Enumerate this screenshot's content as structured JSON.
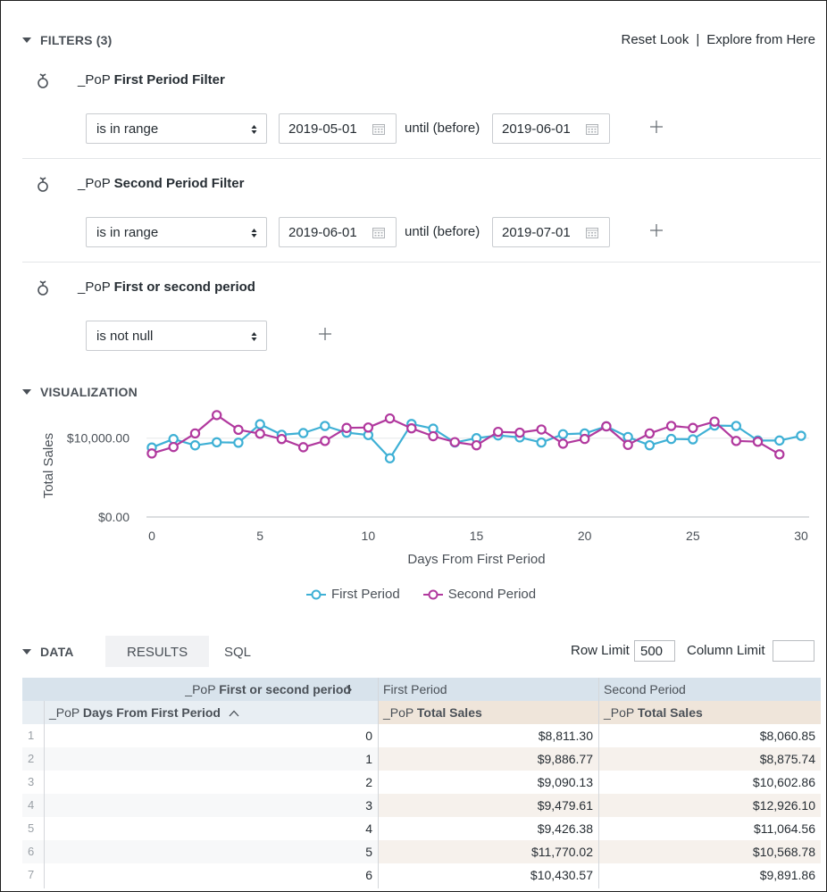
{
  "filters": {
    "heading": "FILTERS (3)",
    "reset_look": "Reset Look",
    "separator": "|",
    "explore": "Explore from Here",
    "items": [
      {
        "prefix": "_PoP ",
        "name": "First Period Filter",
        "operator": "is in range",
        "from": "2019-05-01",
        "until_label": "until (before)",
        "to": "2019-06-01"
      },
      {
        "prefix": "_PoP ",
        "name": "Second Period Filter",
        "operator": "is in range",
        "from": "2019-06-01",
        "until_label": "until (before)",
        "to": "2019-07-01"
      },
      {
        "prefix": "_PoP ",
        "name": "First or second period",
        "operator": "is not null"
      }
    ]
  },
  "visualization": {
    "heading": "VISUALIZATION"
  },
  "chart_data": {
    "type": "line",
    "title": "",
    "xlabel": "Days From First Period",
    "ylabel": "Total Sales",
    "xlim": [
      0,
      30
    ],
    "ylim": [
      0,
      14500
    ],
    "x_ticks": [
      "0",
      "5",
      "10",
      "15",
      "20",
      "25",
      "30"
    ],
    "y_ticks": [
      "$0.00",
      "$10,000.00"
    ],
    "series": [
      {
        "name": "First Period",
        "color": "#3eb0d5",
        "x": [
          0,
          1,
          2,
          3,
          4,
          5,
          6,
          7,
          8,
          9,
          10,
          11,
          12,
          13,
          14,
          15,
          16,
          17,
          18,
          19,
          20,
          21,
          22,
          23,
          24,
          25,
          26,
          27,
          28,
          29,
          30
        ],
        "values": [
          8811.3,
          9886.77,
          9090.13,
          9479.61,
          9426.38,
          11770.02,
          10430.57,
          10650,
          11550,
          10700,
          10400,
          7450,
          11800,
          11200,
          9450,
          10000,
          10350,
          10100,
          9450,
          10500,
          10600,
          11500,
          10150,
          9100,
          9900,
          9850,
          11600,
          11550,
          9700,
          9700,
          10300
        ]
      },
      {
        "name": "Second Period",
        "color": "#b1399e",
        "x": [
          0,
          1,
          2,
          3,
          4,
          5,
          6,
          7,
          8,
          9,
          10,
          11,
          12,
          13,
          14,
          15,
          16,
          17,
          18,
          19,
          20,
          21,
          22,
          23,
          24,
          25,
          26,
          27,
          28,
          29
        ],
        "values": [
          8060.85,
          8875.74,
          10602.86,
          12926.1,
          11064.56,
          10568.78,
          9891.86,
          8850,
          9650,
          11300,
          11350,
          12500,
          11250,
          10250,
          9500,
          9100,
          10800,
          10700,
          11100,
          9300,
          9900,
          11500,
          9150,
          10600,
          11550,
          11300,
          12100,
          9650,
          9550,
          7950
        ]
      }
    ]
  },
  "data": {
    "heading": "DATA",
    "tab_results": "RESULTS",
    "tab_sql": "SQL",
    "row_limit_label": "Row Limit",
    "row_limit_value": "500",
    "column_limit_label": "Column Limit",
    "column_limit_value": ""
  },
  "table": {
    "pivot_prefix": "_PoP ",
    "pivot_name": "First or second period",
    "pivot_values": [
      "First Period",
      "Second Period"
    ],
    "dim_prefix": "_PoP ",
    "dim_name": "Days From First Period",
    "measure_prefix": "_PoP ",
    "measure_name": "Total Sales",
    "rows": [
      {
        "n": "1",
        "day": "0",
        "first": "$8,811.30",
        "second": "$8,060.85"
      },
      {
        "n": "2",
        "day": "1",
        "first": "$9,886.77",
        "second": "$8,875.74"
      },
      {
        "n": "3",
        "day": "2",
        "first": "$9,090.13",
        "second": "$10,602.86"
      },
      {
        "n": "4",
        "day": "3",
        "first": "$9,479.61",
        "second": "$12,926.10"
      },
      {
        "n": "5",
        "day": "4",
        "first": "$9,426.38",
        "second": "$11,064.56"
      },
      {
        "n": "6",
        "day": "5",
        "first": "$11,770.02",
        "second": "$10,568.78"
      },
      {
        "n": "7",
        "day": "6",
        "first": "$10,430.57",
        "second": "$9,891.86"
      }
    ]
  }
}
